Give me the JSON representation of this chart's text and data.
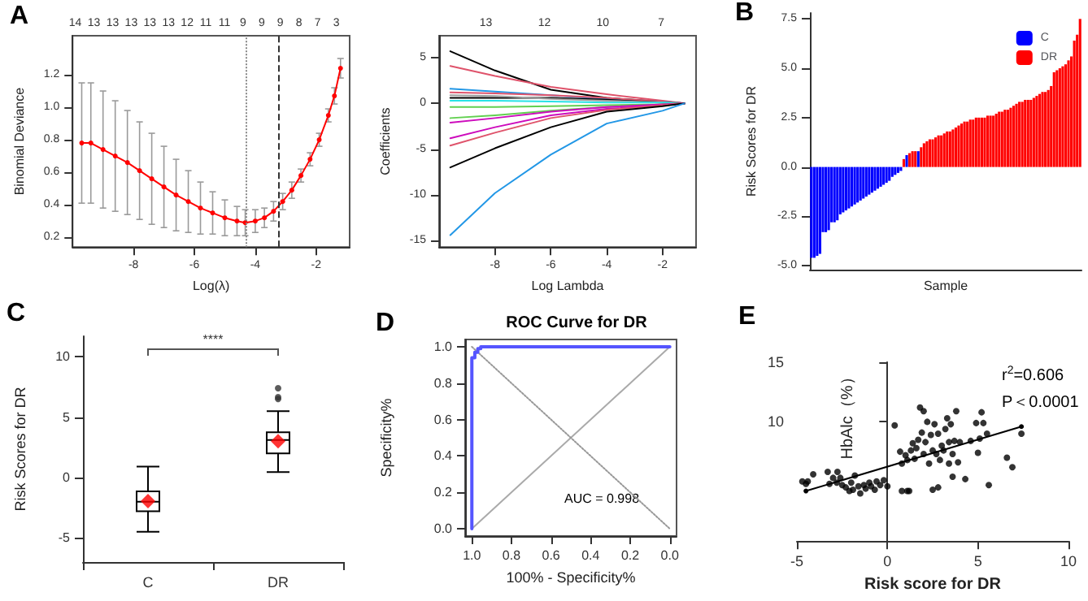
{
  "chart_data": [
    {
      "type": "line",
      "xlabel": "Log(λ)",
      "ylabel": "Binomial Deviance",
      "annotations": [
        "A",
        "14",
        "13",
        "13",
        "13",
        "13",
        "13",
        "12",
        "11",
        "11",
        "9",
        "9",
        "9",
        "8",
        "7",
        "3"
      ],
      "xlim": [
        -10.0,
        -0.9
      ],
      "xticks": [
        -8,
        -6,
        -4,
        -2
      ],
      "ylim": [
        0.14,
        1.44
      ],
      "yticks": [
        0.2,
        0.4,
        0.6,
        0.8,
        {
          "value": 1,
          "label": "1.0"
        },
        1.2
      ],
      "marker": "circle",
      "ref_lines": [
        {
          "axis": "x",
          "value": -4.33,
          "line_style": "dotted",
          "color": "#888888"
        },
        {
          "axis": "x",
          "value": -3.24,
          "line_style": "dashed",
          "color": "#333333"
        }
      ],
      "x": [
        -9.7,
        -9.4,
        -9.0,
        -8.6,
        -8.2,
        -7.8,
        -7.4,
        -7.0,
        -6.6,
        -6.2,
        -5.8,
        -5.4,
        -5.0,
        -4.6,
        -4.33,
        -4.0,
        -3.7,
        -3.4,
        -3.1,
        -2.8,
        -2.5,
        -2.2,
        -1.9,
        -1.6,
        -1.4,
        -1.2
      ],
      "series": [
        {
          "color": "#ff0000",
          "values": [
            0.78,
            0.78,
            0.74,
            0.7,
            0.66,
            0.61,
            0.56,
            0.51,
            0.46,
            0.42,
            0.38,
            0.35,
            0.32,
            0.3,
            0.29,
            0.3,
            0.32,
            0.36,
            0.42,
            0.49,
            0.58,
            0.68,
            0.8,
            0.95,
            1.07,
            1.24
          ],
          "errors": [
            0.37,
            0.37,
            0.36,
            0.34,
            0.32,
            0.3,
            0.28,
            0.25,
            0.22,
            0.19,
            0.16,
            0.13,
            0.11,
            0.09,
            0.08,
            0.07,
            0.06,
            0.06,
            0.05,
            0.05,
            0.04,
            0.04,
            0.04,
            0.04,
            0.05,
            0.06
          ]
        }
      ]
    },
    {
      "type": "line",
      "xlabel": "Log Lambda",
      "ylabel": "Coefficients",
      "annotations": [
        "13",
        "12",
        "10",
        "7"
      ],
      "xlim": [
        -10.0,
        -0.8
      ],
      "xticks": [
        -8,
        -6,
        -4,
        -2
      ],
      "ylim": [
        -15.7,
        7.4
      ],
      "yticks": [
        -15,
        -10,
        -5,
        0,
        5
      ],
      "marker": "none",
      "line_style": "solid",
      "x": [
        -9.6,
        -8,
        -6,
        -4,
        -2,
        -1.22
      ],
      "series": [
        {
          "color": "#000000",
          "values": [
            5.7,
            3.6,
            1.5,
            0.6,
            0.2,
            0
          ]
        },
        {
          "color": "#df536b",
          "values": [
            4.1,
            3.0,
            1.8,
            1.0,
            0.3,
            0
          ]
        },
        {
          "color": "#2297e6",
          "values": [
            1.6,
            1.3,
            0.9,
            0.5,
            0.2,
            0
          ]
        },
        {
          "color": "#df536b",
          "values": [
            1.2,
            1.1,
            0.9,
            0.6,
            0.2,
            0
          ]
        },
        {
          "color": "#000000",
          "values": [
            0.6,
            0.6,
            0.6,
            0.4,
            0.1,
            0
          ]
        },
        {
          "color": "#9e9e9e",
          "values": [
            0.9,
            0.8,
            0.5,
            0.3,
            0.1,
            0
          ]
        },
        {
          "color": "#28e2e5",
          "values": [
            0.3,
            0.3,
            0.2,
            0.1,
            0.1,
            0
          ]
        },
        {
          "color": "#61d04f",
          "values": [
            -0.4,
            -0.4,
            -0.3,
            -0.2,
            -0.1,
            0
          ]
        },
        {
          "color": "#61d04f",
          "values": [
            -1.6,
            -1.3,
            -0.8,
            -0.4,
            -0.1,
            0
          ]
        },
        {
          "color": "#cd0bbc",
          "values": [
            -2.1,
            -1.6,
            -0.9,
            -0.4,
            -0.1,
            0
          ]
        },
        {
          "color": "#cd0bbc",
          "values": [
            -3.8,
            -2.6,
            -1.3,
            -0.6,
            -0.2,
            0
          ]
        },
        {
          "color": "#df536b",
          "values": [
            -4.6,
            -3.2,
            -1.6,
            -0.7,
            -0.2,
            0
          ]
        },
        {
          "color": "#000000",
          "values": [
            -7.0,
            -4.9,
            -2.6,
            -0.9,
            -0.3,
            0
          ]
        },
        {
          "color": "#2297e6",
          "values": [
            -14.4,
            -9.8,
            -5.6,
            -2.2,
            -0.8,
            0
          ]
        }
      ]
    },
    {
      "type": "bar",
      "xlabel": "Sample",
      "ylabel": "Risk Scores for DR",
      "annotations": [
        "B"
      ],
      "legend": "top right",
      "tick_labels": "y",
      "ylim": [
        -5.2,
        7.8
      ],
      "yticks": [
        {
          "value": -5,
          "label": "-5.0"
        },
        {
          "value": -2.5,
          "label": "-2.5"
        },
        {
          "value": 0,
          "label": "0.0"
        },
        {
          "value": 2.5,
          "label": "2.5"
        },
        {
          "value": 5,
          "label": "5.0"
        },
        {
          "value": 7.5,
          "label": "7.5"
        }
      ],
      "categories": [
        null,
        null,
        null,
        null,
        null,
        null,
        null,
        null,
        null,
        null,
        null,
        null,
        null,
        null,
        null,
        null,
        null,
        null,
        null,
        null,
        null,
        null,
        null,
        null,
        null,
        null,
        null,
        null,
        null,
        null,
        null,
        null,
        null,
        null,
        null,
        null,
        null,
        null,
        null,
        null,
        null,
        null,
        null,
        null,
        null,
        null,
        null,
        null,
        null,
        null,
        null,
        null,
        null,
        null,
        null,
        null,
        null,
        null,
        null,
        null,
        null,
        null,
        null,
        null,
        null,
        null,
        null,
        null,
        null,
        null,
        null,
        null,
        null,
        null,
        null,
        null,
        null,
        null,
        null,
        null,
        null,
        null,
        null,
        null,
        null,
        null,
        null,
        null,
        null,
        null,
        null,
        null,
        null,
        null
      ],
      "series": [
        {
          "name": "C",
          "color": "#0000ff",
          "values": [
            -4.6,
            -4.6,
            -4.5,
            -4.4,
            -3.3,
            -3.3,
            -3.2,
            -2.8,
            -2.8,
            -2.7,
            -2.4,
            -2.3,
            -2.2,
            -2.1,
            -2.0,
            -1.9,
            -1.8,
            -1.7,
            -1.6,
            -1.5,
            -1.4,
            -1.3,
            -1.2,
            -1.1,
            -1.0,
            -0.9,
            -0.8,
            -0.7,
            -0.5,
            -0.4,
            -0.3,
            -0.2,
            null,
            0.6,
            null,
            null,
            null,
            0.8,
            null,
            null,
            null,
            null,
            null,
            null,
            null,
            null,
            null,
            null,
            null,
            null,
            null,
            null,
            null,
            null,
            null,
            null,
            null,
            null,
            null,
            null,
            null,
            null,
            null,
            null,
            null,
            null,
            null,
            null,
            null,
            null,
            null,
            null,
            null,
            null,
            null,
            null,
            null,
            null,
            null,
            null,
            null,
            null,
            null,
            null,
            null,
            null,
            null,
            null,
            null,
            null,
            null,
            null,
            null,
            null
          ]
        },
        {
          "name": "DR",
          "color": "#ff0000",
          "values": [
            null,
            null,
            null,
            null,
            null,
            null,
            null,
            null,
            null,
            null,
            null,
            null,
            null,
            null,
            null,
            null,
            null,
            null,
            null,
            null,
            null,
            null,
            null,
            null,
            null,
            null,
            null,
            null,
            null,
            null,
            null,
            null,
            0.4,
            null,
            0.7,
            0.8,
            0.8,
            null,
            1.0,
            1.2,
            1.3,
            1.4,
            1.4,
            1.5,
            1.6,
            1.6,
            1.7,
            1.8,
            1.8,
            1.9,
            2.0,
            2.1,
            2.2,
            2.3,
            2.3,
            2.4,
            2.4,
            2.5,
            2.5,
            2.5,
            2.5,
            2.6,
            2.6,
            2.6,
            2.7,
            2.8,
            2.8,
            2.9,
            2.9,
            3.0,
            3.1,
            3.2,
            3.3,
            3.3,
            3.4,
            3.4,
            3.4,
            3.5,
            3.6,
            3.7,
            3.8,
            3.8,
            3.9,
            4.1,
            4.8,
            4.9,
            5.0,
            5.1,
            5.2,
            5.4,
            5.6,
            6.4,
            6.7,
            7.5
          ]
        }
      ]
    },
    {
      "type": "box",
      "ylabel": "Risk Scores for DR",
      "annotations": [
        "C",
        "****"
      ],
      "categories": [
        "C",
        "DR"
      ],
      "ylim": [
        -7.0,
        11.7
      ],
      "yticks": [
        -5,
        0,
        5,
        10
      ],
      "series": [
        {
          "color": "#000000",
          "boxes": [
            {
              "low": -4.5,
              "q1": -2.8,
              "median": -2.0,
              "q3": -1.15,
              "high": 0.9,
              "mean": -1.95
            },
            {
              "low": 0.45,
              "q1": 2.0,
              "median": 3.1,
              "q3": 3.75,
              "high": 5.5,
              "mean": 3.0,
              "outliers": [
                6.5,
                6.65,
                7.4
              ]
            }
          ]
        }
      ]
    },
    {
      "type": "line",
      "title": "ROC Curve for DR",
      "xlabel": "100% - Specificity%",
      "ylabel": "Specificity%",
      "annotations": [
        "D",
        "AUC = 0.998"
      ],
      "xlim": [
        1.034,
        -0.034
      ],
      "xticks": [
        {
          "value": 1,
          "label": "1.0"
        },
        0.8,
        0.6,
        0.4,
        0.2,
        {
          "value": 0,
          "label": "0.0"
        }
      ],
      "ylim": [
        -0.04,
        1.04
      ],
      "yticks": [
        {
          "value": 0,
          "label": "0.0"
        },
        0.2,
        0.4,
        0.6,
        0.8,
        {
          "value": 1,
          "label": "1.0"
        }
      ],
      "marker": "none",
      "series": [
        {
          "color": "#aaaaaa",
          "x": [
            1,
            0
          ],
          "values": [
            0,
            1
          ],
          "line_style": "solid"
        },
        {
          "color": "#999999",
          "x": [
            1,
            0
          ],
          "values": [
            1,
            0
          ],
          "line_style": "dotted"
        },
        {
          "color": "#5555ff",
          "x": [
            1,
            1,
            0.985,
            0.985,
            0.97,
            0.97,
            0.955,
            0.955,
            0
          ],
          "values": [
            0,
            0.94,
            0.94,
            0.97,
            0.97,
            0.99,
            0.99,
            1,
            1
          ],
          "line_style": "solid"
        }
      ]
    },
    {
      "type": "scatter",
      "xlabel": "Risk score for DR",
      "ylabel": "HbAlc（%）",
      "annotations": [
        "E",
        "r$^{2}$=0.606",
        "P＜0.0001"
      ],
      "xlim": [
        -5,
        10
      ],
      "xticks": [
        -5,
        0,
        5,
        10
      ],
      "ylim": [
        0,
        15
      ],
      "yticks": [
        10,
        15
      ],
      "marker": "circle",
      "series": [
        {
          "color": "#000000",
          "x": [
            -4.7,
            -4.5,
            -4.4,
            -4.1,
            -3.3,
            -3.2,
            -3.0,
            -2.8,
            -2.76,
            -2.6,
            -2.5,
            -2.3,
            -2.1,
            -2.0,
            -1.9,
            -1.8,
            -1.6,
            -1.5,
            -1.3,
            -1.2,
            -1.0,
            -0.9,
            -0.7,
            -0.6,
            -0.4,
            -0.2,
            0.0,
            0.4,
            0.7,
            0.8,
            0.8,
            1.0,
            1.1,
            1.1,
            1.2,
            1.3,
            1.4,
            1.5,
            1.6,
            1.7,
            1.8,
            1.9,
            2.0,
            2.0,
            2.1,
            2.2,
            2.3,
            2.4,
            2.5,
            2.5,
            2.6,
            2.7,
            2.8,
            2.8,
            2.9,
            3.0,
            3.1,
            3.2,
            3.3,
            3.4,
            3.4,
            3.5,
            3.6,
            3.6,
            3.7,
            3.8,
            3.9,
            4.0,
            4.3,
            4.6,
            4.9,
            5.0,
            5.1,
            5.2,
            5.3,
            5.5,
            5.6,
            6.6,
            6.9,
            7.4
          ],
          "values": [
            5.0,
            4.8,
            5.0,
            5.6,
            5.8,
            4.8,
            5.3,
            4.9,
            5.8,
            5.3,
            4.7,
            4.5,
            4.2,
            4.9,
            4.3,
            5.5,
            4.6,
            4.0,
            4.7,
            4.4,
            4.9,
            4.6,
            4.3,
            5.0,
            4.7,
            5.1,
            4.6,
            9.7,
            7.5,
            6.5,
            4.2,
            7.2,
            6.8,
            4.2,
            4.2,
            7.6,
            8.2,
            6.9,
            7.8,
            8.5,
            11.2,
            9.1,
            10.9,
            7.3,
            8.3,
            10.0,
            6.5,
            8.9,
            7.6,
            4.3,
            9.8,
            7.3,
            9.0,
            4.5,
            6.8,
            8.0,
            7.6,
            9.4,
            10.3,
            6.5,
            8.3,
            9.8,
            7.3,
            5.4,
            8.4,
            10.9,
            6.6,
            8.3,
            5.2,
            8.4,
            9.9,
            7.4,
            8.6,
            10.8,
            9.9,
            9.0,
            4.7,
            7.0,
            6.2,
            9.0
          ]
        },
        {
          "type": "line",
          "color": "#000000",
          "x": [
            -4.5,
            7.4
          ],
          "values": [
            4.2,
            9.6
          ]
        }
      ]
    }
  ]
}
